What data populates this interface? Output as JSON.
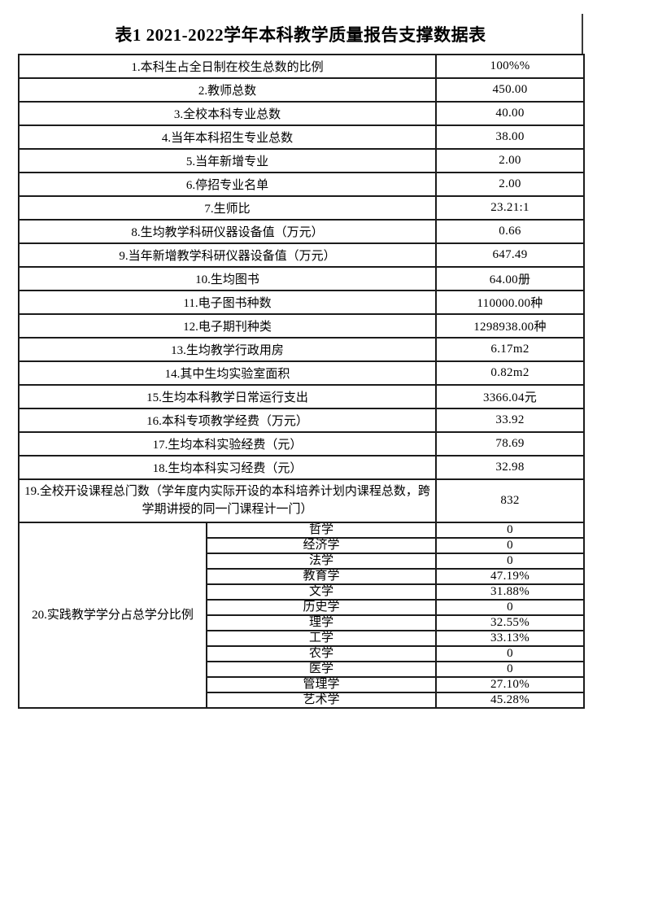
{
  "title": "表1 2021-2022学年本科教学质量报告支撑数据表",
  "table": {
    "rows": [
      {
        "label": "1.本科生占全日制在校生总数的比例",
        "value": "100%%"
      },
      {
        "label": "2.教师总数",
        "value": "450.00"
      },
      {
        "label": "3.全校本科专业总数",
        "value": "40.00"
      },
      {
        "label": "4.当年本科招生专业总数",
        "value": "38.00"
      },
      {
        "label": "5.当年新增专业",
        "value": "2.00"
      },
      {
        "label": "6.停招专业名单",
        "value": "2.00"
      },
      {
        "label": "7.生师比",
        "value": "23.21:1"
      },
      {
        "label": "8.生均教学科研仪器设备值（万元）",
        "value": "0.66"
      },
      {
        "label": "9.当年新增教学科研仪器设备值（万元）",
        "value": "647.49"
      },
      {
        "label": "10.生均图书",
        "value": "64.00册"
      },
      {
        "label": "11.电子图书种数",
        "value": "110000.00种"
      },
      {
        "label": "12.电子期刊种类",
        "value": "1298938.00种"
      },
      {
        "label": "13.生均教学行政用房",
        "value": "6.17m2"
      },
      {
        "label": "14.其中生均实验室面积",
        "value": "0.82m2"
      },
      {
        "label": "15.生均本科教学日常运行支出",
        "value": "3366.04元"
      },
      {
        "label": "16.本科专项教学经费（万元）",
        "value": "33.92"
      },
      {
        "label": "17.生均本科实验经费（元）",
        "value": "78.69"
      },
      {
        "label": "18.生均本科实习经费（元）",
        "value": "32.98"
      },
      {
        "label": "19.全校开设课程总门数（学年度内实际开设的本科培养计划内课程总数，跨学期讲授的同一门课程计一门）",
        "value": "832"
      }
    ],
    "group": {
      "label": "20.实践教学学分占总学分比例",
      "subrows": [
        {
          "label": "哲学",
          "value": "0"
        },
        {
          "label": "经济学",
          "value": "0"
        },
        {
          "label": "法学",
          "value": "0"
        },
        {
          "label": "教育学",
          "value": "47.19%"
        },
        {
          "label": "文学",
          "value": "31.88%"
        },
        {
          "label": "历史学",
          "value": "0"
        },
        {
          "label": "理学",
          "value": "32.55%"
        },
        {
          "label": "工学",
          "value": "33.13%"
        },
        {
          "label": "农学",
          "value": "0"
        },
        {
          "label": "医学",
          "value": "0"
        },
        {
          "label": "管理学",
          "value": "27.10%"
        },
        {
          "label": "艺术学",
          "value": "45.28%"
        }
      ]
    }
  }
}
